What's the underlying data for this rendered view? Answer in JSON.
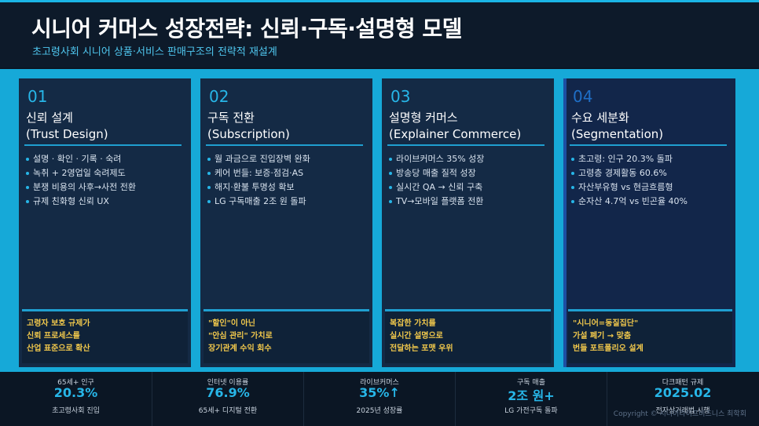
{
  "header": {
    "title": "시니어 커머스 성장전략: 신뢰·구독·설명형 모델",
    "subtitle": "초고령사회 시니어 상품·서비스 판매구조의 전략적 재설계"
  },
  "cards": [
    {
      "num": "01",
      "title": "신뢰 설계",
      "title_en": "(Trust Design)",
      "items": [
        "설명 · 확인 · 기록 · 숙려",
        "녹취 + 2영업일 숙려제도",
        "분쟁 비용의 사후→사전 전환",
        "규제 친화형 신뢰 UX"
      ],
      "note": [
        "고령자 보호 규제가",
        "신뢰 프로세스를",
        "산업 표준으로 확산"
      ]
    },
    {
      "num": "02",
      "title": "구독 전환",
      "title_en": "(Subscription)",
      "items": [
        "월 과금으로 진입장벽 완화",
        "케어 번들: 보증·점검·AS",
        "해지·환불 투명성 확보",
        "LG 구독매출 2조 원 돌파"
      ],
      "note": [
        "\"할인\"이 아닌",
        "\"안심 관리\" 가치로",
        "장기관계 수익 회수"
      ]
    },
    {
      "num": "03",
      "title": "설명형 커머스",
      "title_en": "(Explainer Commerce)",
      "items": [
        "라이브커머스 35% 성장",
        "방송당 매출 질적 성장",
        "실시간 QA → 신뢰 구축",
        "TV→모바일 플랫폼 전환"
      ],
      "note": [
        "복잡한 가치를",
        "실시간 설명으로",
        "전달하는 포맷 우위"
      ]
    },
    {
      "num": "04",
      "title": "수요 세분화",
      "title_en": "(Segmentation)",
      "items": [
        "초고령: 인구 20.3% 돌파",
        "고령층 경제활동 60.6%",
        "자산부유형 vs 현금흐름형",
        "순자산 4.7억 vs 빈곤율 40%"
      ],
      "note": [
        "\"시니어=동질집단\"",
        "가설 폐기 → 맞춤",
        "번들 포트폴리오 설계"
      ]
    }
  ],
  "stats": [
    {
      "label": "65세+ 인구",
      "value": "20.3%",
      "sub": "초고령사회 진입"
    },
    {
      "label": "인터넷 이용률",
      "value": "76.9%",
      "sub": "65세+ 디지털 전환"
    },
    {
      "label": "라이브커머스",
      "value": "35%↑",
      "sub": "2025년 성장률"
    },
    {
      "label": "구독 매출",
      "value": "2조 원+",
      "sub": "LG 가전구독 돌파"
    },
    {
      "label": "다크패턴 규제",
      "value": "2025.02",
      "sub": "전자상거래법 시행"
    }
  ],
  "footer": {
    "copyright": "Copyright © 시니어라이프비즈니스 최학회"
  },
  "colors": {
    "accent": "#27b6e8",
    "note_text": "#f2c94c",
    "panel": "#16a9d8",
    "card": "#142a45"
  }
}
